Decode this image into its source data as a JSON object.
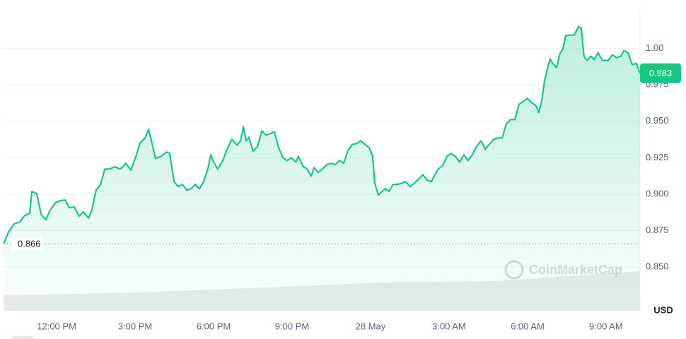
{
  "chart_data": {
    "type": "area",
    "currency": "USD",
    "watermark": "CoinMarketCap",
    "color": "#16c784",
    "reference": 0.866,
    "xlim": [
      9.97,
      34.3
    ],
    "xticks": [
      {
        "value": 12,
        "label": "12:00 PM"
      },
      {
        "value": 15,
        "label": "3:00 PM"
      },
      {
        "value": 18,
        "label": "6:00 PM"
      },
      {
        "value": 21,
        "label": "9:00 PM"
      },
      {
        "value": 24,
        "label": "28 May"
      },
      {
        "value": 27,
        "label": "3:00 AM"
      },
      {
        "value": 30,
        "label": "6:00 AM"
      },
      {
        "value": 33,
        "label": "9:00 AM"
      }
    ],
    "ylim": [
      0.82,
      1.026
    ],
    "yticks": [
      {
        "value": 0.85,
        "label": "0.850"
      },
      0.875,
      {
        "value": 0.9,
        "label": "0.900"
      },
      0.925,
      {
        "value": 0.95,
        "label": "0.950"
      },
      0.975,
      {
        "value": 1,
        "label": "1.00"
      }
    ],
    "grid": true,
    "x": [
      9.97,
      10.16,
      10.38,
      10.59,
      10.78,
      10.97,
      11.05,
      11.24,
      11.41,
      11.59,
      11.73,
      11.95,
      12.14,
      12.32,
      12.49,
      12.68,
      12.86,
      13.03,
      13.22,
      13.35,
      13.51,
      13.68,
      13.84,
      14.03,
      14.22,
      14.43,
      14.65,
      14.84,
      15.03,
      15.19,
      15.38,
      15.51,
      15.59,
      15.78,
      16.0,
      16.19,
      16.32,
      16.49,
      16.65,
      16.81,
      16.97,
      17.14,
      17.3,
      17.46,
      17.62,
      17.78,
      17.89,
      18.0,
      18.16,
      18.35,
      18.54,
      18.7,
      18.89,
      19.03,
      19.14,
      19.24,
      19.35,
      19.51,
      19.68,
      19.84,
      20.0,
      20.16,
      20.32,
      20.49,
      20.65,
      20.81,
      20.97,
      21.14,
      21.24,
      21.41,
      21.57,
      21.73,
      21.84,
      22.0,
      22.16,
      22.32,
      22.49,
      22.65,
      22.81,
      22.97,
      23.14,
      23.3,
      23.46,
      23.62,
      23.78,
      23.95,
      24.08,
      24.16,
      24.3,
      24.43,
      24.57,
      24.7,
      24.86,
      25.03,
      25.19,
      25.35,
      25.51,
      25.68,
      25.84,
      26.0,
      26.16,
      26.32,
      26.46,
      26.59,
      26.76,
      26.92,
      27.08,
      27.24,
      27.41,
      27.57,
      27.73,
      27.89,
      28.05,
      28.22,
      28.38,
      28.54,
      28.7,
      28.86,
      29.03,
      29.19,
      29.35,
      29.51,
      29.68,
      29.84,
      30.0,
      30.16,
      30.32,
      30.43,
      30.54,
      30.65,
      30.78,
      30.86,
      31.0,
      31.11,
      31.24,
      31.35,
      31.46,
      31.62,
      31.78,
      31.95,
      32.05,
      32.16,
      32.27,
      32.43,
      32.54,
      32.7,
      32.86,
      33.08,
      33.24,
      33.41,
      33.57,
      33.68,
      33.84,
      34.0,
      34.16,
      34.3
    ],
    "values": [
      0.866,
      0.8738,
      0.8796,
      0.881,
      0.8854,
      0.8868,
      0.9018,
      0.9004,
      0.8859,
      0.8825,
      0.8883,
      0.8941,
      0.8955,
      0.896,
      0.8907,
      0.8912,
      0.8849,
      0.8878,
      0.8835,
      0.8893,
      0.9028,
      0.9067,
      0.9173,
      0.9173,
      0.9188,
      0.9173,
      0.9212,
      0.9163,
      0.926,
      0.9352,
      0.9386,
      0.9444,
      0.9391,
      0.9246,
      0.926,
      0.9289,
      0.9279,
      0.9086,
      0.9052,
      0.9067,
      0.9028,
      0.9038,
      0.9067,
      0.9038,
      0.9086,
      0.9173,
      0.927,
      0.9221,
      0.9173,
      0.9231,
      0.9318,
      0.9376,
      0.9337,
      0.9366,
      0.9463,
      0.9366,
      0.9391,
      0.9294,
      0.9328,
      0.9434,
      0.9405,
      0.9415,
      0.9429,
      0.9318,
      0.925,
      0.9231,
      0.925,
      0.9221,
      0.926,
      0.9192,
      0.9173,
      0.9125,
      0.9183,
      0.9149,
      0.9173,
      0.9202,
      0.9212,
      0.9202,
      0.9231,
      0.9212,
      0.9299,
      0.9342,
      0.9347,
      0.9366,
      0.9342,
      0.9318,
      0.926,
      0.9076,
      0.8994,
      0.9018,
      0.9038,
      0.9018,
      0.9067,
      0.9067,
      0.9076,
      0.9086,
      0.9052,
      0.9076,
      0.9105,
      0.9134,
      0.9096,
      0.9086,
      0.9134,
      0.9173,
      0.9197,
      0.926,
      0.9279,
      0.926,
      0.9221,
      0.927,
      0.9231,
      0.927,
      0.9328,
      0.9366,
      0.9308,
      0.9342,
      0.9376,
      0.9386,
      0.9386,
      0.9483,
      0.9512,
      0.9512,
      0.9618,
      0.9637,
      0.9657,
      0.9628,
      0.9608,
      0.956,
      0.9637,
      0.9778,
      0.9874,
      0.9927,
      0.9889,
      0.9869,
      0.9966,
      0.9995,
      1.0087,
      1.0092,
      1.0092,
      1.015,
      1.014,
      0.9947,
      0.9918,
      0.9947,
      0.9923,
      0.9971,
      0.9918,
      0.9918,
      0.9956,
      0.9937,
      0.9947,
      0.9985,
      0.9971,
      0.9889,
      0.9898,
      0.983
    ]
  }
}
